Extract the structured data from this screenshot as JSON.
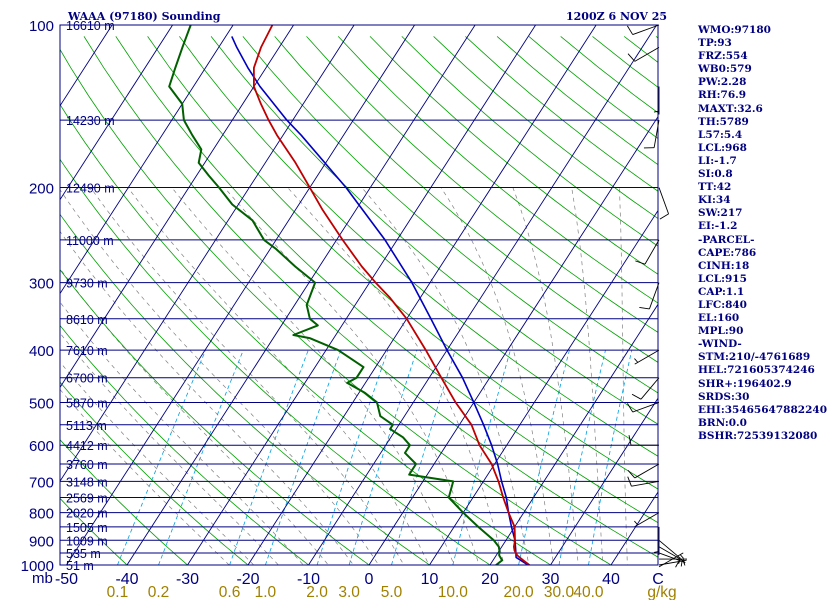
{
  "header": {
    "station": "WAAA (97180) Sounding",
    "datetime": "1200Z  6 NOV 25"
  },
  "colors": {
    "background": "#ffffff",
    "frame": "#000080",
    "isobars": "#000080",
    "isotherms": "#000080",
    "dry_adiabats": "#00a000",
    "moist_adiabats": "#808080",
    "mixing_ratio": "#00a0e0",
    "temperature": "#c00000",
    "dewpoint": "#006000",
    "parcel": "#0000c0",
    "labels": "#000080",
    "mixing_label": "#a08000",
    "wind_barbs": "#000000"
  },
  "indices": [
    "WMO:97180",
    "TP:93",
    "FRZ:554",
    "WB0:579",
    "PW:2.28",
    "RH:76.9",
    "MAXT:32.6",
    "TH:5789",
    "L57:5.4",
    "LCL:968",
    "LI:-1.7",
    "SI:0.8",
    "TT:42",
    "KI:34",
    "SW:217",
    "EI:-1.2",
    "-PARCEL-",
    "CAPE:786",
    "CINH:18",
    "LCL:915",
    "CAP:1.1",
    "LFC:840",
    "EL:160",
    "MPL:90",
    "-WIND-",
    "STM:210/-4761689",
    "HEL:721605374246",
    "SHR+:196402.9",
    "SRDS:30",
    "EHI:35465647882240",
    "BRN:0.0",
    "BSHR:72539132080"
  ],
  "chart_data": {
    "type": "skew-t",
    "title": "WAAA (97180) Sounding",
    "xlabel": "C",
    "ylabel": "mb",
    "xlim": [
      -50,
      50
    ],
    "ylim": [
      1000,
      100
    ],
    "pressure_ticks": [
      {
        "p": 100,
        "label": "100"
      },
      {
        "p": 200,
        "label": "200"
      },
      {
        "p": 300,
        "label": "300"
      },
      {
        "p": 400,
        "label": "400"
      },
      {
        "p": 500,
        "label": "500"
      },
      {
        "p": 600,
        "label": "600"
      },
      {
        "p": 700,
        "label": "700"
      },
      {
        "p": 800,
        "label": "800"
      },
      {
        "p": 900,
        "label": "900"
      },
      {
        "p": 1000,
        "label": "1000"
      }
    ],
    "temperature_ticks": [
      {
        "t": -50,
        "label": "-50"
      },
      {
        "t": -40,
        "label": "-40"
      },
      {
        "t": -30,
        "label": "-30"
      },
      {
        "t": -20,
        "label": "-20"
      },
      {
        "t": -10,
        "label": "-10"
      },
      {
        "t": 0,
        "label": "0"
      },
      {
        "t": 10,
        "label": "10"
      },
      {
        "t": 20,
        "label": "20"
      },
      {
        "t": 30,
        "label": "30"
      },
      {
        "t": 40,
        "label": "40"
      }
    ],
    "unit_label": "C",
    "mixing_unit_label": "g/kg",
    "mixing_ratio_lines": [
      {
        "w": 0.1,
        "label": "0.1"
      },
      {
        "w": 0.2,
        "label": "0.2"
      },
      {
        "w": 0.6,
        "label": "0.6"
      },
      {
        "w": 1.0,
        "label": "1.0"
      },
      {
        "w": 2.0,
        "label": "2.0"
      },
      {
        "w": 3.0,
        "label": "3.0"
      },
      {
        "w": 5.0,
        "label": "5.0"
      },
      {
        "w": 10.0,
        "label": "10.0"
      },
      {
        "w": 20.0,
        "label": "20.0"
      },
      {
        "w": 30.0,
        "label": "30.0"
      },
      {
        "w": 40.0,
        "label": "40.0"
      }
    ],
    "height_labels": [
      {
        "p": 100,
        "label": "16610 m"
      },
      {
        "p": 150,
        "label": "14230 m"
      },
      {
        "p": 200,
        "label": "12490 m"
      },
      {
        "p": 250,
        "label": "11000 m"
      },
      {
        "p": 300,
        "label": "9730 m"
      },
      {
        "p": 350,
        "label": "8610 m"
      },
      {
        "p": 400,
        "label": "7610 m"
      },
      {
        "p": 450,
        "label": "6700 m"
      },
      {
        "p": 500,
        "label": "5870 m"
      },
      {
        "p": 550,
        "label": "5113 m"
      },
      {
        "p": 600,
        "label": "4412 m"
      },
      {
        "p": 650,
        "label": "3760 m"
      },
      {
        "p": 700,
        "label": "3148 m"
      },
      {
        "p": 750,
        "label": "2569 m"
      },
      {
        "p": 800,
        "label": "2020 m"
      },
      {
        "p": 850,
        "label": "1505 m"
      },
      {
        "p": 900,
        "label": "1009 m"
      },
      {
        "p": 950,
        "label": "535 m"
      },
      {
        "p": 1000,
        "label": "51 m"
      }
    ],
    "temperature_profile": [
      [
        1008,
        27
      ],
      [
        1000,
        26.5
      ],
      [
        980,
        25
      ],
      [
        960,
        23.5
      ],
      [
        940,
        22.5
      ],
      [
        925,
        22
      ],
      [
        900,
        21.5
      ],
      [
        850,
        20
      ],
      [
        800,
        17.5
      ],
      [
        750,
        15
      ],
      [
        700,
        12.5
      ],
      [
        650,
        9.5
      ],
      [
        600,
        5.5
      ],
      [
        550,
        2
      ],
      [
        500,
        -3
      ],
      [
        450,
        -8
      ],
      [
        400,
        -13.5
      ],
      [
        350,
        -20
      ],
      [
        320,
        -25
      ],
      [
        300,
        -29
      ],
      [
        280,
        -33
      ],
      [
        250,
        -39
      ],
      [
        220,
        -45.5
      ],
      [
        200,
        -50
      ],
      [
        180,
        -55
      ],
      [
        160,
        -61
      ],
      [
        150,
        -64
      ],
      [
        140,
        -67
      ],
      [
        130,
        -70
      ],
      [
        120,
        -72
      ],
      [
        110,
        -73
      ],
      [
        100,
        -73.5
      ]
    ],
    "dewpoint_profile": [
      [
        1008,
        21
      ],
      [
        1000,
        21
      ],
      [
        980,
        21.5
      ],
      [
        960,
        20.5
      ],
      [
        940,
        20
      ],
      [
        925,
        19.5
      ],
      [
        900,
        18
      ],
      [
        850,
        14
      ],
      [
        800,
        10
      ],
      [
        750,
        6
      ],
      [
        700,
        5
      ],
      [
        680,
        -3
      ],
      [
        650,
        -3
      ],
      [
        620,
        -6
      ],
      [
        600,
        -6
      ],
      [
        580,
        -8
      ],
      [
        560,
        -11
      ],
      [
        550,
        -11
      ],
      [
        530,
        -14
      ],
      [
        500,
        -16
      ],
      [
        480,
        -19
      ],
      [
        460,
        -23
      ],
      [
        450,
        -22
      ],
      [
        430,
        -22
      ],
      [
        400,
        -28
      ],
      [
        380,
        -34
      ],
      [
        375,
        -37
      ],
      [
        360,
        -34
      ],
      [
        350,
        -36
      ],
      [
        330,
        -38
      ],
      [
        300,
        -39
      ],
      [
        280,
        -44
      ],
      [
        260,
        -49
      ],
      [
        250,
        -52
      ],
      [
        230,
        -56
      ],
      [
        215,
        -61
      ],
      [
        200,
        -65
      ],
      [
        190,
        -68
      ],
      [
        180,
        -71
      ],
      [
        170,
        -72
      ],
      [
        160,
        -75
      ],
      [
        150,
        -78
      ],
      [
        140,
        -80
      ],
      [
        130,
        -84
      ],
      [
        120,
        -85
      ],
      [
        110,
        -86
      ],
      [
        100,
        -87
      ]
    ],
    "parcel_profile": [
      [
        1008,
        27
      ],
      [
        968,
        23.5
      ],
      [
        950,
        23
      ],
      [
        900,
        21.5
      ],
      [
        850,
        19.5
      ],
      [
        800,
        17.5
      ],
      [
        750,
        15.5
      ],
      [
        700,
        13
      ],
      [
        650,
        10.5
      ],
      [
        600,
        7.5
      ],
      [
        550,
        4
      ],
      [
        500,
        0
      ],
      [
        450,
        -4.5
      ],
      [
        400,
        -10
      ],
      [
        350,
        -16
      ],
      [
        300,
        -23
      ],
      [
        250,
        -32
      ],
      [
        200,
        -44
      ],
      [
        160,
        -57
      ],
      [
        150,
        -61
      ],
      [
        130,
        -69
      ],
      [
        120,
        -73
      ],
      [
        110,
        -77
      ],
      [
        105,
        -79
      ]
    ],
    "wind_barbs": [
      {
        "p": 1008,
        "dir": 60,
        "spd": 5
      },
      {
        "p": 1000,
        "dir": 80,
        "spd": 5
      },
      {
        "p": 975,
        "dir": 90,
        "spd": 5
      },
      {
        "p": 950,
        "dir": 110,
        "spd": 5
      },
      {
        "p": 925,
        "dir": 120,
        "spd": 5
      },
      {
        "p": 900,
        "dir": 130,
        "spd": 10
      },
      {
        "p": 850,
        "dir": 180,
        "spd": 5
      },
      {
        "p": 800,
        "dir": 240,
        "spd": 5
      },
      {
        "p": 700,
        "dir": 260,
        "spd": 10
      },
      {
        "p": 650,
        "dir": 240,
        "spd": 10
      },
      {
        "p": 600,
        "dir": 270,
        "spd": 10
      },
      {
        "p": 500,
        "dir": 250,
        "spd": 10
      },
      {
        "p": 450,
        "dir": 220,
        "spd": 10
      },
      {
        "p": 400,
        "dir": 240,
        "spd": 5
      },
      {
        "p": 300,
        "dir": 200,
        "spd": 10
      },
      {
        "p": 250,
        "dir": 210,
        "spd": 10
      },
      {
        "p": 200,
        "dir": 160,
        "spd": 10
      },
      {
        "p": 150,
        "dir": 190,
        "spd": 10
      },
      {
        "p": 130,
        "dir": 180,
        "spd": 5
      },
      {
        "p": 110,
        "dir": 240,
        "spd": 10
      },
      {
        "p": 100,
        "dir": 250,
        "spd": 10
      }
    ]
  }
}
